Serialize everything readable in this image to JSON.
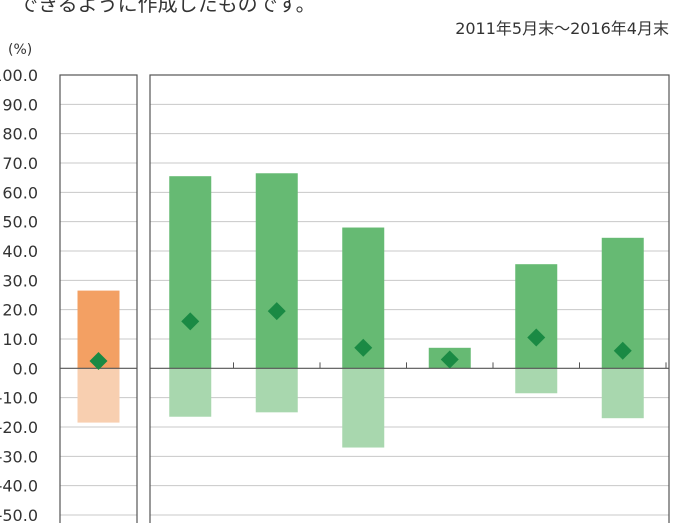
{
  "caption_cut": "できるように作成したものです。",
  "chart_data": {
    "type": "bar",
    "period": "2011年5月末〜2016年4月末",
    "unit": "(%)",
    "ylim": [
      -50,
      100
    ],
    "y_ticks": [
      "100.0",
      "90.0",
      "80.0",
      "70.0",
      "60.0",
      "50.0",
      "40.0",
      "30.0",
      "20.0",
      "10.0",
      "0.0",
      "-10.0",
      "-20.0",
      "-30.0",
      "-40.0",
      "-50.0"
    ],
    "grid": true,
    "legend": "none",
    "panels": [
      {
        "groups": [
          {
            "max": 26.5,
            "min": -18.5,
            "avg": 2.5
          }
        ],
        "colors": {
          "upper": "#f3a063",
          "lower": "#f8cfb0",
          "marker": "#1a8a44"
        }
      },
      {
        "groups": [
          {
            "max": 65.5,
            "min": -16.5,
            "avg": 16.0
          },
          {
            "max": 66.5,
            "min": -15.0,
            "avg": 19.5
          },
          {
            "max": 48.0,
            "min": -27.0,
            "avg": 7.0
          },
          {
            "max": 7.0,
            "min": 0.0,
            "avg": 3.0
          },
          {
            "max": 35.5,
            "min": -8.5,
            "avg": 10.5
          },
          {
            "max": 44.5,
            "min": -17.0,
            "avg": 6.0
          }
        ],
        "colors": {
          "upper": "#66ba73",
          "lower": "#a8d7ae",
          "marker": "#1a8a44"
        }
      }
    ]
  }
}
